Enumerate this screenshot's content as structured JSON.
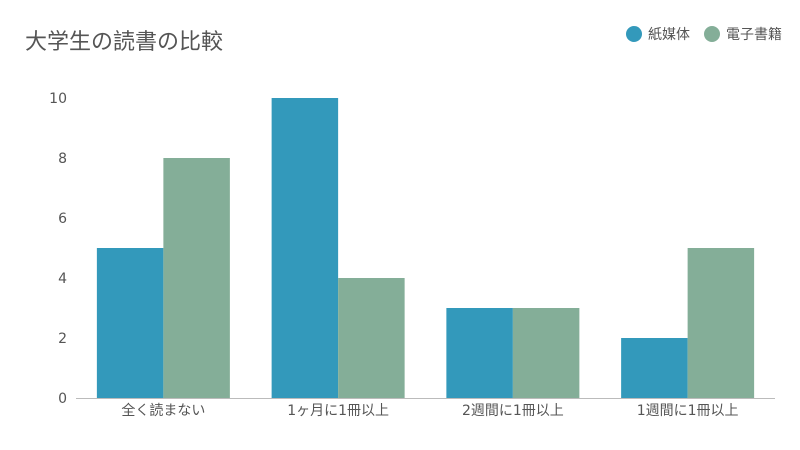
{
  "chart_data": {
    "type": "bar",
    "title": "大学生の読書の比較",
    "xlabel": "",
    "ylabel": "",
    "categories": [
      "全く読まない",
      "1ヶ月に1冊以上",
      "2週間に1冊以上",
      "1週間に1冊以上"
    ],
    "series": [
      {
        "name": "紙媒体",
        "values": [
          5,
          10,
          3,
          2
        ],
        "color": "#3399bb"
      },
      {
        "name": "電子書籍",
        "values": [
          8,
          4,
          3,
          5
        ],
        "color": "#84ae98"
      }
    ],
    "ylim": [
      0,
      10
    ],
    "yticks": [
      0,
      2,
      4,
      6,
      8,
      10
    ],
    "grid": false,
    "legend_position": "top-right"
  }
}
